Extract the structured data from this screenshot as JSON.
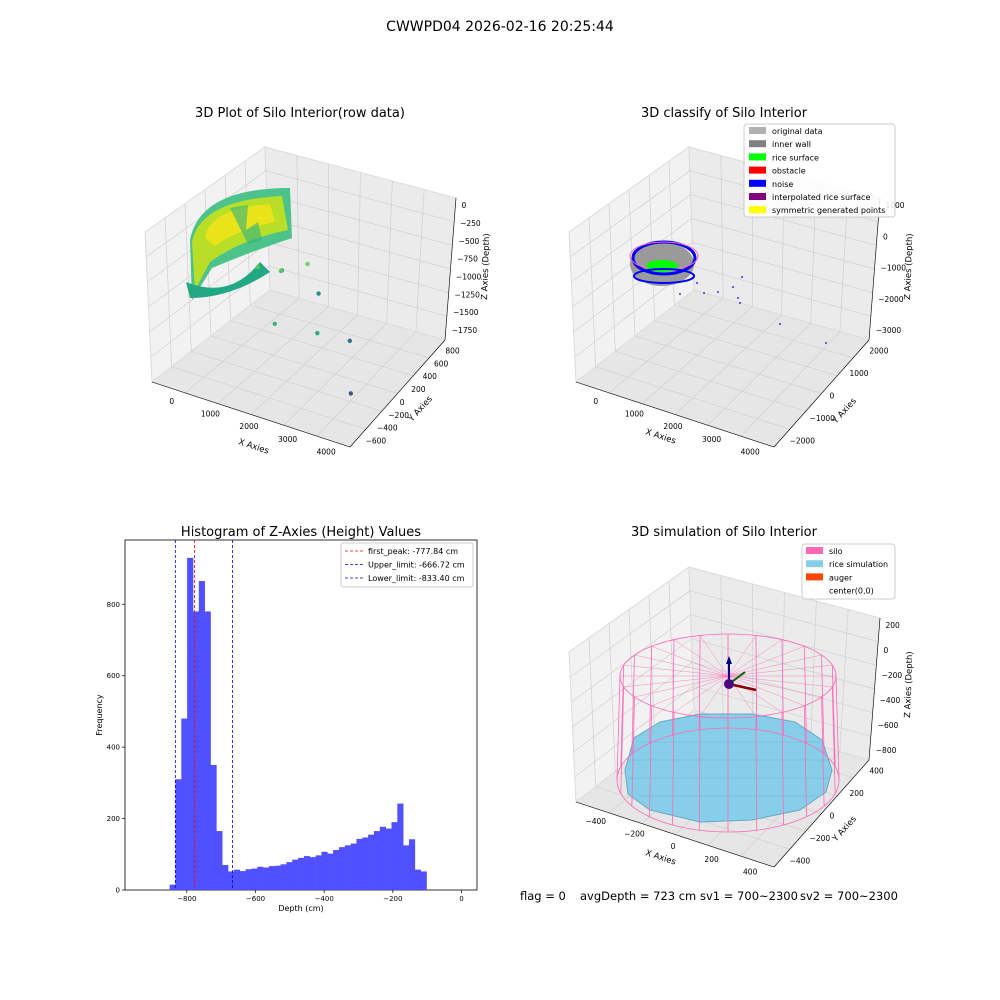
{
  "suptitle": "CWWPD04 2026-02-16 20:25:44",
  "status_line": {
    "flag": "flag = 0",
    "avg_depth": "avgDepth = 723 cm",
    "sv1": "sv1 = 700~2300",
    "sv2": "sv2 = 700~2300"
  },
  "colors": {
    "hist_bar": "#5050ff",
    "first_peak": "#ff0000",
    "limits": "#0000cc",
    "silo": "#ff69b4",
    "rice_simulation": "#87ceeb",
    "auger": "#ff4500",
    "original_data": "#b0b0b0",
    "inner_wall": "#808080",
    "rice_surface": "#00ff00",
    "obstacle": "#ff0000",
    "noise": "#0000ff",
    "interpolated_rice_surface": "#800080",
    "symmetric_generated_points": "#ffff00"
  },
  "chart_data": [
    {
      "type": "scatter",
      "title": "3D Plot of Silo Interior(row data)",
      "xlabel": "X Axies",
      "ylabel": "Y Axies",
      "zlabel": "Z Axies (Depth)",
      "x_ticks": [
        "0",
        "1000",
        "2000",
        "3000",
        "4000"
      ],
      "y_ticks": [
        "800",
        "600",
        "400",
        "200",
        "0",
        "−200",
        "−400",
        "−600"
      ],
      "z_ticks": [
        "0",
        "−250",
        "−500",
        "−750",
        "−1000",
        "−1250",
        "−1500",
        "−1750"
      ],
      "xlim": [
        -500,
        4300
      ],
      "ylim": [
        -700,
        900
      ],
      "zlim": [
        -1900,
        100
      ],
      "grid": true,
      "description_points": [
        {
          "x": 1200,
          "y": -100,
          "z": -520
        },
        {
          "x": 1500,
          "y": 100,
          "z": -700
        },
        {
          "x": 1900,
          "y": -300,
          "z": -1000
        },
        {
          "x": 2100,
          "y": 300,
          "z": -1100
        },
        {
          "x": 2500,
          "y": 0,
          "z": -1300
        },
        {
          "x": 3000,
          "y": 200,
          "z": -1500
        },
        {
          "x": 3600,
          "y": -200,
          "z": -1750
        },
        {
          "x": 900,
          "y": 500,
          "z": -1200
        },
        {
          "x": 1400,
          "y": 600,
          "z": -1100
        }
      ]
    },
    {
      "type": "scatter",
      "title": "3D classify of Silo Interior",
      "xlabel": "X Axies",
      "ylabel": "Y Axies",
      "zlabel": "Z Axies (Depth)",
      "x_ticks": [
        "0",
        "1000",
        "2000",
        "3000",
        "4000"
      ],
      "y_ticks": [
        "2000",
        "1000",
        "0",
        "−1000",
        "−2000"
      ],
      "z_ticks": [
        "1000",
        "0",
        "−1000",
        "−2000",
        "−3000"
      ],
      "legend": {
        "position": "upper right",
        "entries": [
          "original data",
          "inner wall",
          "rice surface",
          "obstacle",
          "noise",
          "interpolated rice surface",
          "symmetric generated points"
        ]
      },
      "grid": true
    },
    {
      "type": "bar",
      "title": "Histogram of Z-Axies (Height) Values",
      "xlabel": "Depth (cm)",
      "ylabel": "Frequency",
      "xlim": [
        -980,
        45
      ],
      "ylim": [
        0,
        980
      ],
      "x_ticks": [
        -800,
        -600,
        -400,
        -200,
        0
      ],
      "y_ticks": [
        0,
        200,
        400,
        600,
        800
      ],
      "bin_start": -850,
      "bin_width": 17,
      "values": [
        15,
        310,
        480,
        930,
        780,
        865,
        780,
        350,
        165,
        70,
        52,
        57,
        53,
        58,
        60,
        65,
        63,
        67,
        68,
        72,
        78,
        85,
        90,
        95,
        92,
        97,
        107,
        102,
        112,
        120,
        125,
        130,
        143,
        147,
        155,
        165,
        177,
        172,
        190,
        242,
        125,
        142,
        57,
        52
      ],
      "vlines": [
        {
          "name": "first_peak: -777.84 cm",
          "x": -777.84,
          "style": "dashed",
          "colorKey": "first_peak"
        },
        {
          "name": "Upper_limit: -666.72 cm",
          "x": -666.72,
          "style": "dashed",
          "colorKey": "limits"
        },
        {
          "name": "Lower_limit: -833.40 cm",
          "x": -833.4,
          "style": "dashed",
          "colorKey": "limits"
        }
      ],
      "legend": "upper right"
    },
    {
      "type": "scatter",
      "title": "3D simulation of Silo Interior",
      "xlabel": "X Axies",
      "ylabel": "Y Axies",
      "zlabel": "Z Axies (Depth)",
      "x_ticks": [
        "−400",
        "−200",
        "0",
        "200",
        "400"
      ],
      "y_ticks": [
        "400",
        "200",
        "0",
        "−200",
        "−400"
      ],
      "z_ticks": [
        "200",
        "0",
        "−200",
        "−400",
        "−600",
        "−800"
      ],
      "legend": {
        "position": "upper right",
        "entries": [
          "silo",
          "rice simulation",
          "auger",
          "center(0,0)"
        ]
      },
      "grid": true
    }
  ]
}
